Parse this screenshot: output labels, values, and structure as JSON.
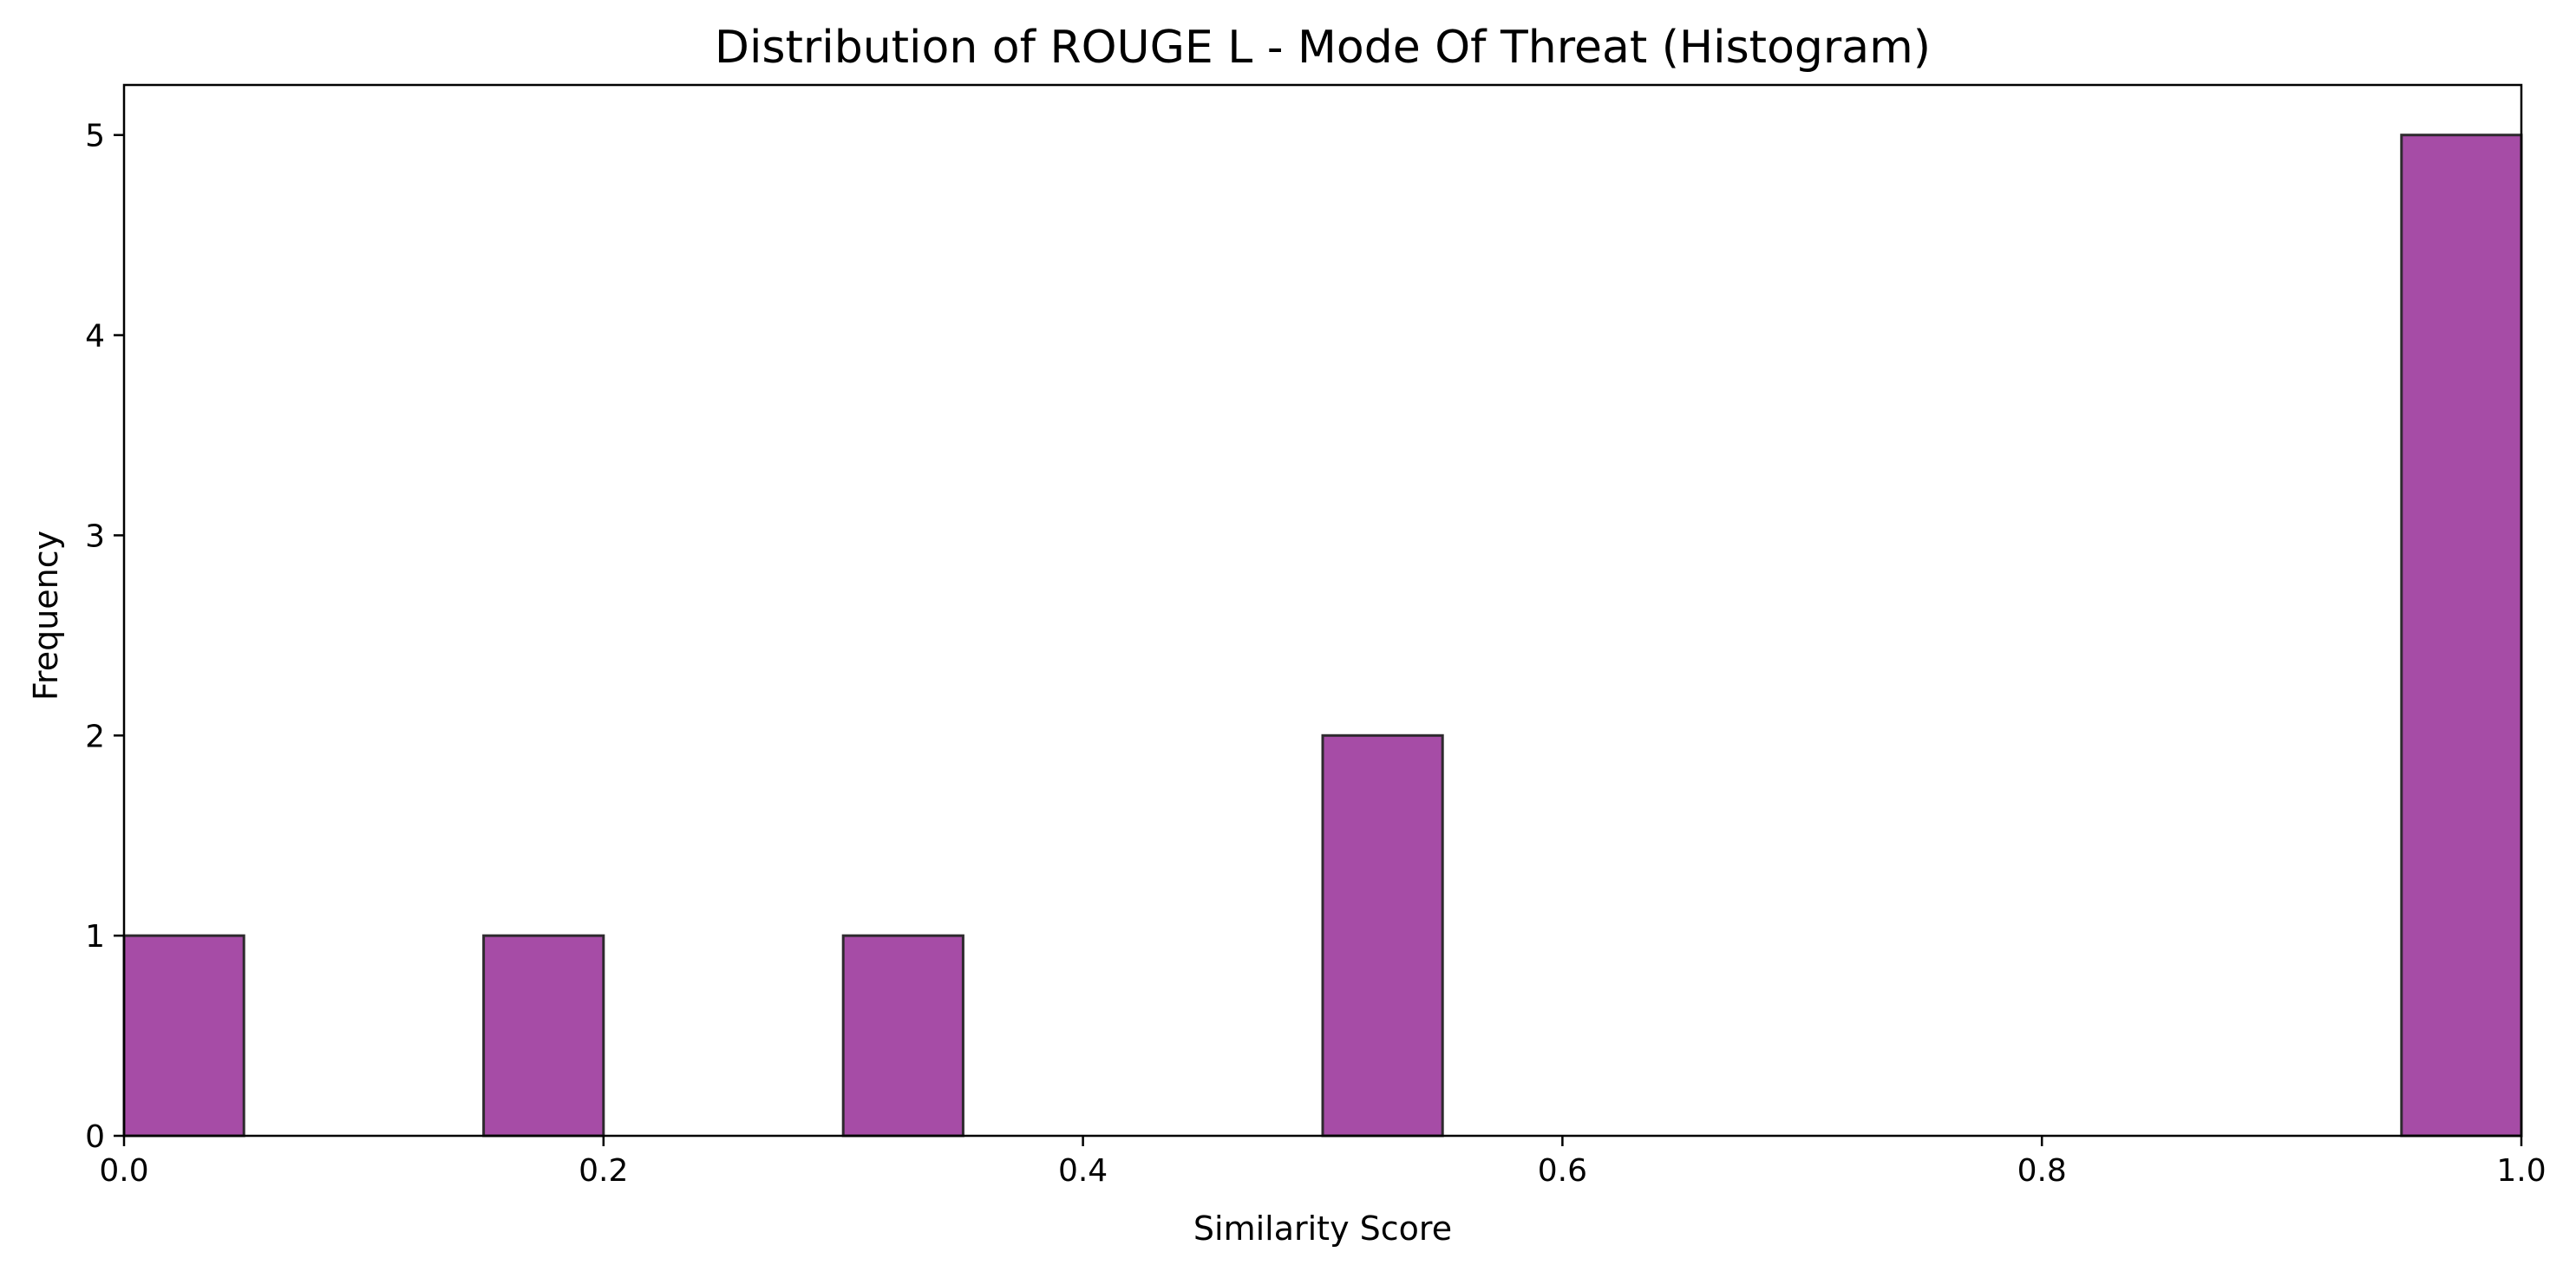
{
  "chart_data": {
    "type": "bar",
    "subtype": "histogram",
    "title": "Distribution of ROUGE L - Mode Of Threat (Histogram)",
    "xlabel": "Similarity Score",
    "ylabel": "Frequency",
    "xlim": [
      0.0,
      1.0
    ],
    "ylim": [
      0,
      5.25
    ],
    "xticks": [
      0.0,
      0.2,
      0.4,
      0.6,
      0.8,
      1.0
    ],
    "xtick_labels": [
      "0.0",
      "0.2",
      "0.4",
      "0.6",
      "0.8",
      "1.0"
    ],
    "yticks": [
      0,
      1,
      2,
      3,
      4,
      5
    ],
    "ytick_labels": [
      "0",
      "1",
      "2",
      "3",
      "4",
      "5"
    ],
    "bins": [
      {
        "x0": 0.0,
        "x1": 0.05,
        "count": 1
      },
      {
        "x0": 0.15,
        "x1": 0.2,
        "count": 1
      },
      {
        "x0": 0.3,
        "x1": 0.35,
        "count": 1
      },
      {
        "x0": 0.5,
        "x1": 0.55,
        "count": 2
      },
      {
        "x0": 0.95,
        "x1": 1.0,
        "count": 5
      }
    ],
    "bar_color": "#a64ca6",
    "bar_edge_color": "#2e2a2e",
    "grid": false,
    "legend": "none"
  }
}
